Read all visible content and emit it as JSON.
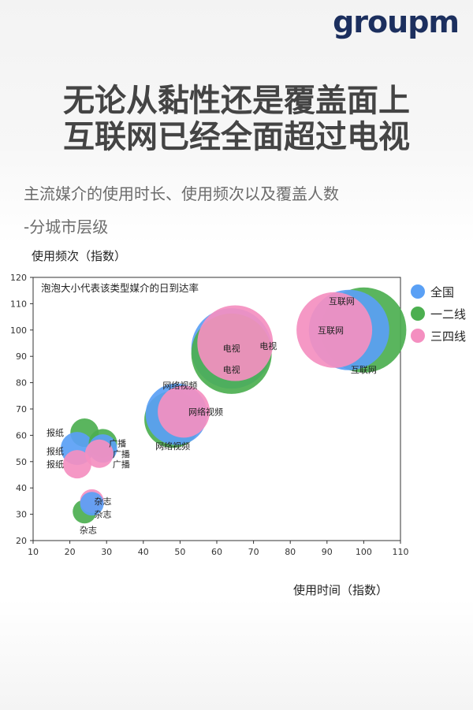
{
  "brand": {
    "logo_text": "groupm"
  },
  "title": {
    "line1": "无论从黏性还是覆盖面上",
    "line2": "互联网已经全面超过电视"
  },
  "subtitle": {
    "line1": "主流媒介的使用时长、使用频次以及覆盖人数",
    "line2": "-分城市层级"
  },
  "chart_data": {
    "type": "scatter",
    "bubble": true,
    "ylabel": "使用频次（指数）",
    "xlabel": "使用时间（指数）",
    "annotation": "泡泡大小代表该类型媒介的日到达率",
    "xlim": [
      10,
      110
    ],
    "ylim": [
      20,
      120
    ],
    "xticks": [
      10,
      20,
      30,
      40,
      50,
      60,
      70,
      80,
      90,
      100,
      110
    ],
    "yticks": [
      20,
      30,
      40,
      50,
      60,
      70,
      80,
      90,
      100,
      110,
      120
    ],
    "legend_position": "right",
    "series": [
      {
        "name": "全国",
        "color": "#5aa0f5",
        "points": [
          {
            "label": "报纸",
            "x": 22,
            "y": 55,
            "size": 7
          },
          {
            "label": "广播",
            "x": 29,
            "y": 55,
            "size": 6
          },
          {
            "label": "杂志",
            "x": 26,
            "y": 34,
            "size": 5
          },
          {
            "label": "网络视频",
            "x": 49,
            "y": 68,
            "size": 13
          },
          {
            "label": "电视",
            "x": 64,
            "y": 93,
            "size": 17
          },
          {
            "label": "互联网",
            "x": 96,
            "y": 100,
            "size": 17
          }
        ]
      },
      {
        "name": "一二线",
        "color": "#4caf50",
        "points": [
          {
            "label": "报纸",
            "x": 24,
            "y": 61,
            "size": 6
          },
          {
            "label": "广播",
            "x": 29,
            "y": 57,
            "size": 6
          },
          {
            "label": "杂志",
            "x": 24,
            "y": 31,
            "size": 5
          },
          {
            "label": "网络视频",
            "x": 48,
            "y": 66,
            "size": 12
          },
          {
            "label": "电视",
            "x": 64,
            "y": 91,
            "size": 17
          },
          {
            "label": "互联网",
            "x": 100,
            "y": 100,
            "size": 18
          }
        ]
      },
      {
        "name": "三四线",
        "color": "#f48fc0",
        "points": [
          {
            "label": "报纸",
            "x": 22,
            "y": 49,
            "size": 6
          },
          {
            "label": "广播",
            "x": 28,
            "y": 53,
            "size": 6
          },
          {
            "label": "杂志",
            "x": 26,
            "y": 35,
            "size": 5
          },
          {
            "label": "网络视频",
            "x": 51,
            "y": 69,
            "size": 11
          },
          {
            "label": "电视",
            "x": 65,
            "y": 95,
            "size": 16
          },
          {
            "label": "互联网",
            "x": 92,
            "y": 100,
            "size": 16
          }
        ]
      }
    ],
    "data_labels": [
      {
        "text": "互联网",
        "x": 94,
        "y": 111
      },
      {
        "text": "互联网",
        "x": 100,
        "y": 85
      },
      {
        "text": "互联网",
        "x": 91,
        "y": 100
      },
      {
        "text": "电视",
        "x": 74,
        "y": 94
      },
      {
        "text": "电视",
        "x": 64,
        "y": 85
      },
      {
        "text": "电视",
        "x": 64,
        "y": 93
      },
      {
        "text": "网络视频",
        "x": 50,
        "y": 79
      },
      {
        "text": "网络视频",
        "x": 57,
        "y": 69
      },
      {
        "text": "网络视频",
        "x": 48,
        "y": 56
      },
      {
        "text": "报纸",
        "x": 16,
        "y": 61
      },
      {
        "text": "报纸",
        "x": 16,
        "y": 54
      },
      {
        "text": "报纸",
        "x": 16,
        "y": 49
      },
      {
        "text": "广播",
        "x": 33,
        "y": 57
      },
      {
        "text": "广播",
        "x": 34,
        "y": 53
      },
      {
        "text": "广播",
        "x": 34,
        "y": 49
      },
      {
        "text": "杂志",
        "x": 29,
        "y": 35
      },
      {
        "text": "杂志",
        "x": 29,
        "y": 30
      },
      {
        "text": "杂志",
        "x": 25,
        "y": 24
      }
    ]
  }
}
